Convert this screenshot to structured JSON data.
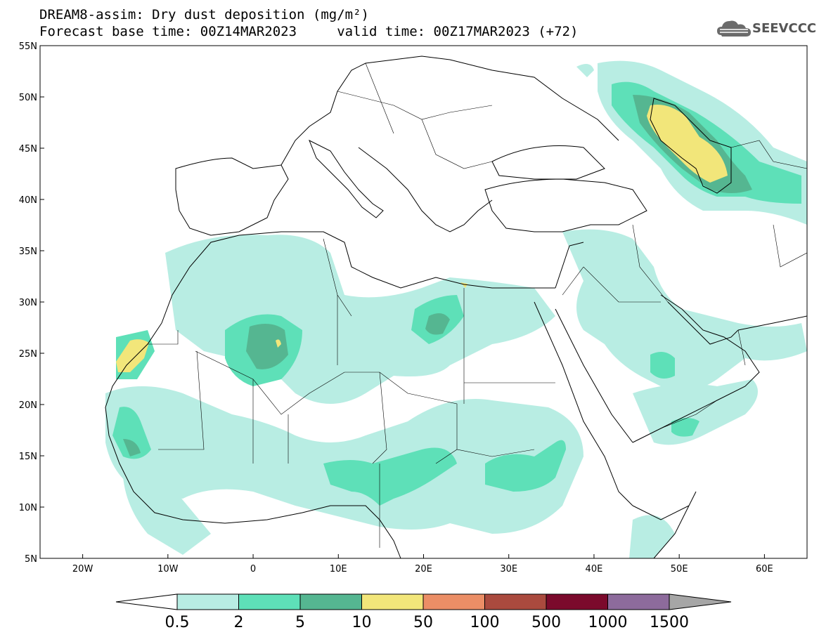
{
  "header": {
    "title_line1": "DREAM8-assim: Dry dust deposition (mg/m²)",
    "title_line2": "Forecast base time: 00Z14MAR2023     valid time: 00Z17MAR2023 (+72)"
  },
  "logo": {
    "text": "SEEVCCC",
    "icon": "cloud-logo-icon"
  },
  "map": {
    "lon_range": [
      -25,
      65
    ],
    "lat_range": [
      5,
      55
    ],
    "lat_ticks": [
      {
        "value": 55,
        "label": "55N"
      },
      {
        "value": 50,
        "label": "50N"
      },
      {
        "value": 45,
        "label": "45N"
      },
      {
        "value": 40,
        "label": "40N"
      },
      {
        "value": 35,
        "label": "35N"
      },
      {
        "value": 30,
        "label": "30N"
      },
      {
        "value": 25,
        "label": "25N"
      },
      {
        "value": 20,
        "label": "20N"
      },
      {
        "value": 15,
        "label": "15N"
      },
      {
        "value": 10,
        "label": "10N"
      },
      {
        "value": 5,
        "label": "5N"
      }
    ],
    "lon_ticks": [
      {
        "value": -20,
        "label": "20W"
      },
      {
        "value": -10,
        "label": "10W"
      },
      {
        "value": 0,
        "label": "0"
      },
      {
        "value": 10,
        "label": "10E"
      },
      {
        "value": 20,
        "label": "20E"
      },
      {
        "value": 30,
        "label": "30E"
      },
      {
        "value": 40,
        "label": "40E"
      },
      {
        "value": 50,
        "label": "50E"
      },
      {
        "value": 60,
        "label": "60E"
      }
    ]
  },
  "colorbar": {
    "levels": [
      "0.5",
      "2",
      "5",
      "10",
      "50",
      "100",
      "500",
      "1000",
      "1500"
    ],
    "colors": [
      "#ffffff",
      "#b8ede3",
      "#5ee0b8",
      "#55b691",
      "#f2e67a",
      "#eb8e66",
      "#aa4a3e",
      "#7b0a2c",
      "#8d6b9c",
      "#a6a6a6"
    ]
  }
}
